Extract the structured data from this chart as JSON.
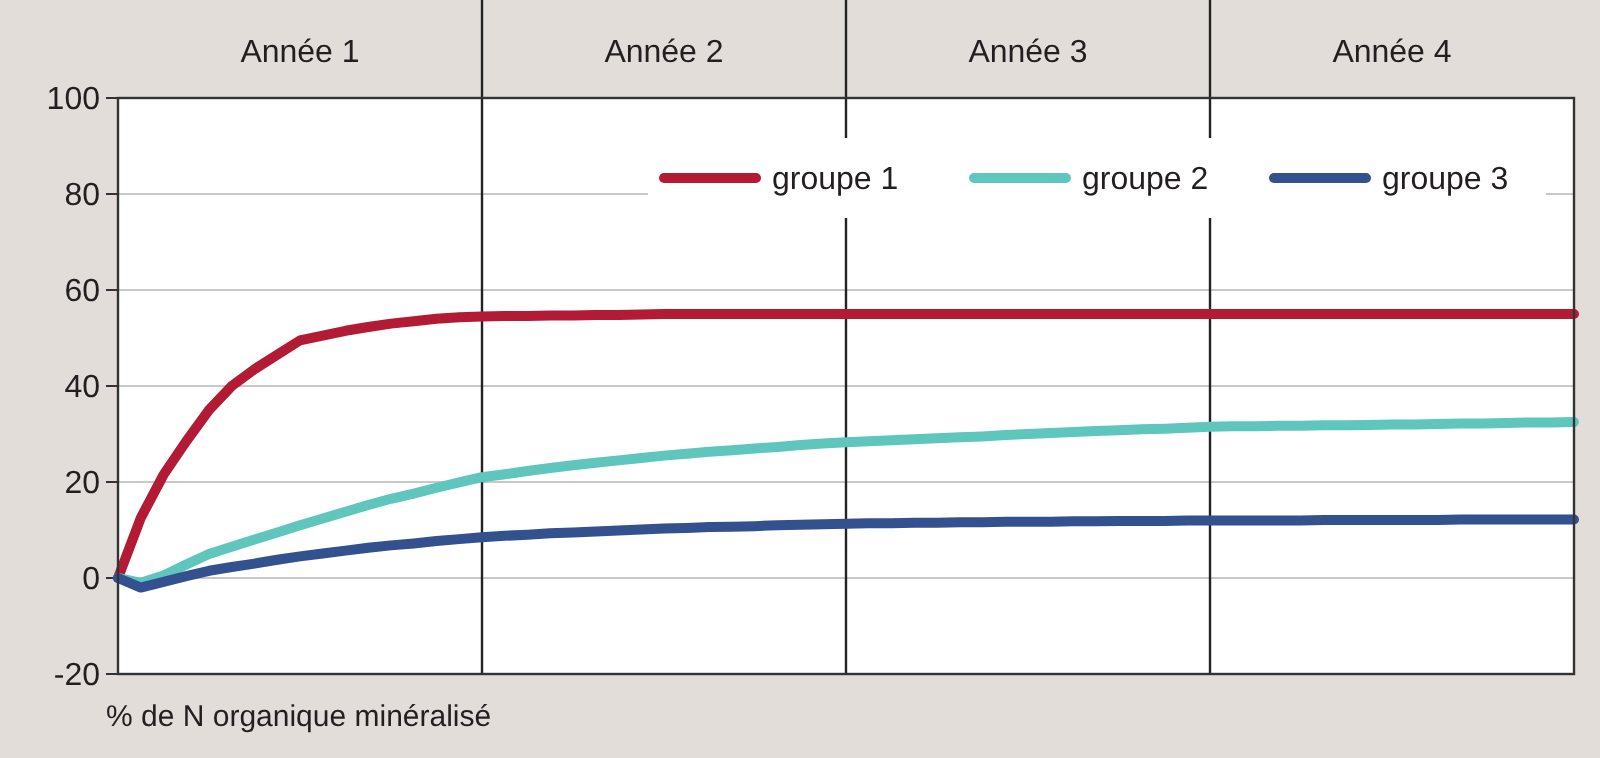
{
  "chart_data": {
    "type": "line",
    "annotations": [
      "% de N organique minéralisé"
    ],
    "categories": [
      null,
      null,
      null,
      null,
      null,
      null,
      null,
      null,
      "Année 1",
      null,
      null,
      null,
      null,
      null,
      null,
      null,
      null,
      null,
      null,
      null,
      null,
      null,
      null,
      null,
      "Année 2",
      null,
      null,
      null,
      null,
      null,
      null,
      null,
      null,
      null,
      null,
      null,
      null,
      null,
      null,
      null,
      "Année 3",
      null,
      null,
      null,
      null,
      null,
      null,
      null,
      null,
      null,
      null,
      null,
      null,
      null,
      null,
      null,
      "Année 4",
      null,
      null,
      null,
      null,
      null,
      null,
      null,
      null
    ],
    "ylim": [
      -20,
      100
    ],
    "yticks": [
      -20,
      0,
      20,
      40,
      60,
      80,
      100
    ],
    "grid": "y",
    "legend": "top right",
    "marker": "none",
    "line_style": "solid",
    "series": [
      {
        "name": "groupe 1",
        "color": "#b31b34",
        "values": [
          0,
          12.5,
          21.5,
          28.5,
          35,
          40,
          43.5,
          46.5,
          49.5,
          50.5,
          51.5,
          52.3,
          53,
          53.5,
          54,
          54.3,
          54.5,
          54.6,
          54.6,
          54.7,
          54.7,
          54.8,
          54.8,
          54.9,
          55,
          55,
          55,
          55,
          55,
          55,
          55,
          55,
          55,
          55,
          55,
          55,
          55,
          55,
          55,
          55,
          55,
          55,
          55,
          55,
          55,
          55,
          55,
          55,
          55,
          55,
          55,
          55,
          55,
          55,
          55,
          55,
          55,
          55,
          55,
          55,
          55,
          55,
          55,
          55,
          55
        ]
      },
      {
        "name": "groupe 2",
        "color": "#5ec6bd",
        "values": [
          0,
          -1,
          0.5,
          2.8,
          5,
          6.5,
          8,
          9.5,
          11,
          12.4,
          13.8,
          15.2,
          16.5,
          17.6,
          18.8,
          19.9,
          21,
          21.6,
          22.3,
          22.9,
          23.5,
          24,
          24.5,
          25,
          25.5,
          25.9,
          26.3,
          26.6,
          27,
          27.3,
          27.7,
          28,
          28.3,
          28.5,
          28.7,
          28.9,
          29.1,
          29.3,
          29.5,
          29.8,
          30,
          30.2,
          30.4,
          30.6,
          30.8,
          31,
          31.1,
          31.3,
          31.5,
          31.6,
          31.6,
          31.7,
          31.7,
          31.8,
          31.8,
          31.9,
          32,
          32,
          32.1,
          32.2,
          32.2,
          32.3,
          32.4,
          32.4,
          32.5
        ]
      },
      {
        "name": "groupe 3",
        "color": "#33508f",
        "values": [
          0,
          -2,
          -0.8,
          0.4,
          1.5,
          2.3,
          3,
          3.8,
          4.5,
          5.1,
          5.7,
          6.3,
          6.8,
          7.2,
          7.7,
          8.1,
          8.5,
          8.8,
          9,
          9.3,
          9.5,
          9.7,
          9.9,
          10.1,
          10.3,
          10.4,
          10.6,
          10.7,
          10.8,
          11,
          11.1,
          11.2,
          11.3,
          11.4,
          11.4,
          11.5,
          11.5,
          11.6,
          11.6,
          11.7,
          11.7,
          11.7,
          11.8,
          11.8,
          11.9,
          11.9,
          11.9,
          12,
          12,
          12,
          12,
          12,
          12,
          12.1,
          12.1,
          12.1,
          12.1,
          12.1,
          12.1,
          12.2,
          12.2,
          12.2,
          12.2,
          12.2,
          12.2
        ]
      }
    ]
  }
}
